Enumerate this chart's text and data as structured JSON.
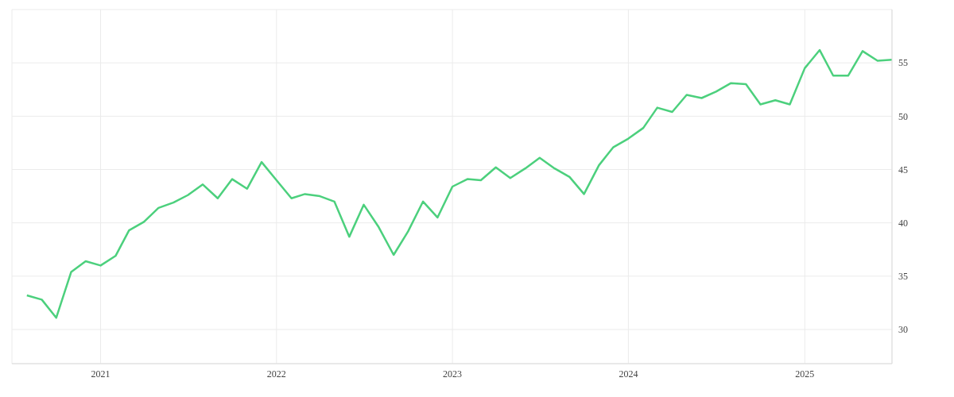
{
  "chart_data": {
    "type": "line",
    "x": [
      "2020-08",
      "2020-09",
      "2020-10",
      "2020-11",
      "2020-12",
      "2021-01",
      "2021-02",
      "2021-03",
      "2021-04",
      "2021-05",
      "2021-06",
      "2021-07",
      "2021-08",
      "2021-09",
      "2021-10",
      "2021-11",
      "2021-12",
      "2022-01",
      "2022-02",
      "2022-03",
      "2022-04",
      "2022-05",
      "2022-06",
      "2022-07",
      "2022-08",
      "2022-09",
      "2022-10",
      "2022-11",
      "2022-12",
      "2023-01",
      "2023-02",
      "2023-03",
      "2023-04",
      "2023-05",
      "2023-06",
      "2023-07",
      "2023-08",
      "2023-09",
      "2023-10",
      "2023-11",
      "2023-12",
      "2024-01",
      "2024-02",
      "2024-03",
      "2024-04",
      "2024-05",
      "2024-06",
      "2024-07",
      "2024-08",
      "2024-09",
      "2024-10",
      "2024-11",
      "2024-12",
      "2025-01",
      "2025-02",
      "2025-03",
      "2025-04",
      "2025-05",
      "2025-06",
      "2025-07"
    ],
    "series": [
      {
        "color": "#4cd07d",
        "values": [
          33.2,
          32.8,
          31.1,
          35.4,
          36.4,
          36.0,
          36.9,
          39.3,
          40.1,
          41.4,
          41.9,
          42.6,
          43.6,
          42.3,
          44.1,
          43.2,
          45.7,
          44.0,
          42.3,
          42.7,
          42.5,
          42.0,
          38.7,
          41.7,
          39.6,
          37.0,
          39.2,
          42.0,
          40.5,
          43.4,
          44.1,
          44.0,
          45.2,
          44.2,
          45.1,
          46.1,
          45.1,
          44.3,
          42.7,
          45.4,
          47.1,
          47.9,
          48.9,
          50.8,
          50.4,
          52.0,
          51.7,
          52.3,
          53.1,
          53.0,
          51.1,
          51.5,
          51.1,
          54.5,
          56.2,
          53.8,
          53.8,
          56.1,
          55.2,
          55.3
        ]
      }
    ],
    "xlim": [
      "2020-07",
      "2025-07"
    ],
    "xticks": [
      "2021",
      "2022",
      "2023",
      "2024",
      "2025"
    ],
    "ylim": [
      26.8,
      60
    ],
    "yticks": [
      30,
      35,
      40,
      45,
      50,
      55
    ],
    "grid": true,
    "marker": "none",
    "line_style": "solid"
  }
}
